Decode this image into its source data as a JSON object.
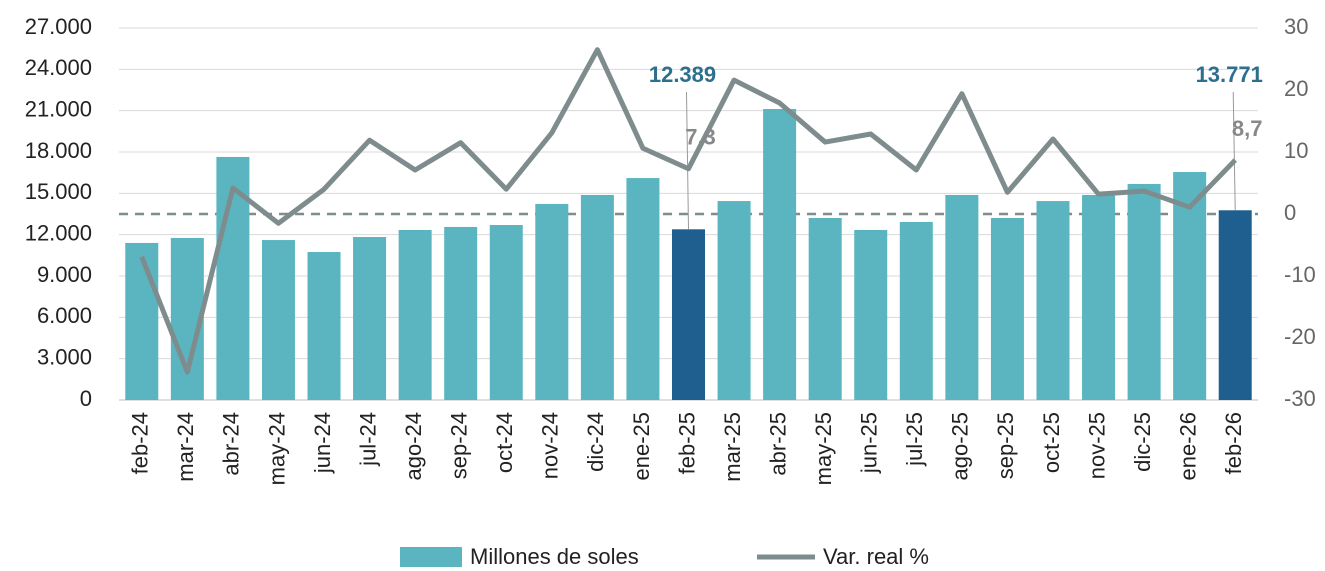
{
  "chart_data": {
    "type": "bar-line",
    "categories": [
      "feb-24",
      "mar-24",
      "abr-24",
      "may-24",
      "jun-24",
      "jul-24",
      "ago-24",
      "sep-24",
      "oct-24",
      "nov-24",
      "dic-24",
      "ene-25",
      "feb-25",
      "mar-25",
      "abr-25",
      "may-25",
      "jun-25",
      "jul-25",
      "ago-25",
      "sep-25",
      "oct-25",
      "nov-25",
      "dic-25",
      "ene-26",
      "feb-26"
    ],
    "series": [
      {
        "name": "Millones de soles",
        "type": "bar",
        "color": "#5ab5c0",
        "highlight_color": "#1f5f8f",
        "values": [
          11400,
          11760,
          17640,
          11610,
          10740,
          11830,
          12340,
          12560,
          12700,
          14230,
          14880,
          16110,
          12389,
          14440,
          21120,
          13210,
          12340,
          12920,
          14880,
          13210,
          14440,
          14880,
          15680,
          16550,
          13771
        ],
        "value_labels": [
          null,
          null,
          null,
          null,
          null,
          null,
          null,
          null,
          null,
          null,
          null,
          null,
          "12.389",
          null,
          null,
          null,
          null,
          null,
          null,
          null,
          null,
          null,
          null,
          null,
          "13.771"
        ]
      },
      {
        "name": "Var. real %",
        "type": "line",
        "axis": "y2",
        "color": "#7f8c8d",
        "values": [
          -6.9,
          -25.5,
          4.2,
          -1.5,
          4.0,
          11.9,
          7.1,
          11.5,
          4.0,
          13.1,
          26.5,
          10.6,
          7.3,
          21.6,
          17.9,
          11.6,
          12.9,
          7.1,
          19.4,
          3.5,
          12.1,
          3.2,
          3.7,
          1.1,
          8.7
        ],
        "value_labels": [
          null,
          null,
          null,
          null,
          null,
          null,
          null,
          null,
          null,
          null,
          null,
          null,
          "7,3",
          null,
          null,
          null,
          null,
          null,
          null,
          null,
          null,
          null,
          null,
          null,
          "8,7"
        ]
      }
    ],
    "ylim": [
      0,
      27000
    ],
    "yticks": [
      0,
      {
        "value": 3000,
        "label": "3.000"
      },
      {
        "value": 6000,
        "label": "6.000"
      },
      {
        "value": 9000,
        "label": "9.000"
      },
      {
        "value": 12000,
        "label": "12.000"
      },
      {
        "value": 15000,
        "label": "15.000"
      },
      {
        "value": 18000,
        "label": "18.000"
      },
      {
        "value": 21000,
        "label": "21.000"
      },
      {
        "value": 24000,
        "label": "24.000"
      },
      {
        "value": 27000,
        "label": "27.000"
      }
    ],
    "y2lim": [
      -30,
      30
    ],
    "y2ticks": [
      -30,
      -20,
      -10,
      0,
      10,
      20,
      30
    ],
    "grid": true,
    "legend": "bottom"
  }
}
